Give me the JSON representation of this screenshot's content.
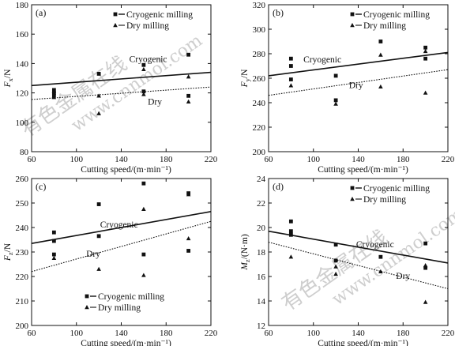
{
  "watermark": {
    "text_cn": "有色金属在线",
    "text_url": "www.cnnmol.com"
  },
  "legend_labels": {
    "cryo": "Cryogenic milling",
    "dry": "Dry milling"
  },
  "annotations": {
    "cryo": "Cryogenic",
    "dry": "Dry"
  },
  "colors": {
    "ink": "#111111",
    "frame": "#111111",
    "watermark": "#c9c9c9"
  },
  "chart_data": [
    {
      "type": "scatter",
      "panel": "(a)",
      "xlabel": "Cutting speed/(m·min⁻¹)",
      "ylabel": "Fₓ/N",
      "xlim": [
        60,
        220
      ],
      "ylim": [
        80,
        180
      ],
      "xticks": [
        60,
        100,
        140,
        180,
        220
      ],
      "yticks": [
        80,
        100,
        120,
        140,
        160,
        180
      ],
      "legend_position": "top-right",
      "annotation_positions": {
        "cryo": [
          164,
          141
        ],
        "dry": [
          170,
          112
        ]
      },
      "series": [
        {
          "name": "Cryogenic milling",
          "marker": "square",
          "x": [
            80,
            80,
            80,
            120,
            160,
            160,
            200,
            200
          ],
          "y": [
            122,
            120,
            118,
            133,
            139,
            121,
            146,
            118
          ],
          "fit": [
            [
              60,
              125
            ],
            [
              220,
              134
            ]
          ]
        },
        {
          "name": "Dry milling",
          "marker": "triangle",
          "x": [
            80,
            80,
            120,
            120,
            160,
            160,
            200,
            200
          ],
          "y": [
            121,
            117,
            118,
            106,
            136,
            119,
            131,
            114
          ],
          "fit": [
            [
              60,
              115.5
            ],
            [
              220,
              124
            ]
          ]
        }
      ]
    },
    {
      "type": "scatter",
      "panel": "(b)",
      "xlabel": "Cutting speed/(m·min⁻¹)",
      "ylabel": "F_y/N",
      "xlim": [
        60,
        220
      ],
      "ylim": [
        200,
        320
      ],
      "xticks": [
        60,
        100,
        140,
        180,
        220
      ],
      "yticks": [
        200,
        220,
        240,
        260,
        280,
        300,
        320
      ],
      "legend_position": "top-right",
      "annotation_positions": {
        "cryo": [
          108,
          273
        ],
        "dry": [
          138,
          252
        ]
      },
      "series": [
        {
          "name": "Cryogenic milling",
          "marker": "square",
          "x": [
            80,
            80,
            80,
            120,
            120,
            160,
            200,
            200
          ],
          "y": [
            276,
            270,
            259,
            262,
            242,
            290,
            285,
            276
          ],
          "fit": [
            [
              60,
              262
            ],
            [
              220,
              281
            ]
          ]
        },
        {
          "name": "Dry milling",
          "marker": "triangle",
          "x": [
            80,
            120,
            160,
            160,
            200,
            200
          ],
          "y": [
            254,
            239,
            279,
            253,
            282,
            248
          ],
          "fit": [
            [
              60,
              246
            ],
            [
              220,
              267
            ]
          ]
        }
      ]
    },
    {
      "type": "scatter",
      "panel": "(c)",
      "xlabel": "Cutting speed/(m·min⁻¹)",
      "ylabel": "F_z/N",
      "xlim": [
        60,
        220
      ],
      "ylim": [
        200,
        260
      ],
      "xticks": [
        60,
        100,
        140,
        180,
        220
      ],
      "yticks": [
        200,
        210,
        220,
        230,
        240,
        250,
        260
      ],
      "legend_position": "bottom-left",
      "annotation_positions": {
        "cryo": [
          138,
          240
        ],
        "dry": [
          115,
          228
        ]
      },
      "series": [
        {
          "name": "Cryogenic milling",
          "marker": "square",
          "x": [
            80,
            80,
            80,
            120,
            120,
            160,
            160,
            200,
            200
          ],
          "y": [
            238,
            234.5,
            229,
            249.5,
            236.5,
            258,
            229,
            254,
            230.5
          ],
          "fit": [
            [
              60,
              233.5
            ],
            [
              220,
              246.5
            ]
          ]
        },
        {
          "name": "Dry milling",
          "marker": "triangle",
          "x": [
            80,
            120,
            160,
            160,
            200,
            200
          ],
          "y": [
            227.5,
            223,
            247.5,
            220.5,
            253.5,
            235.5
          ],
          "fit": [
            [
              60,
              222
            ],
            [
              220,
              242.5
            ]
          ]
        }
      ]
    },
    {
      "type": "scatter",
      "panel": "(d)",
      "xlabel": "Cutting speed/(m·min⁻¹)",
      "ylabel": "M_z/(N·m)",
      "xlim": [
        60,
        220
      ],
      "ylim": [
        12,
        24
      ],
      "xticks": [
        60,
        100,
        140,
        180,
        220
      ],
      "yticks": [
        12,
        14,
        16,
        18,
        20,
        22,
        24
      ],
      "legend_position": "top-right",
      "annotation_positions": {
        "cryo": [
          155,
          18.4
        ],
        "dry": [
          180,
          15.8
        ]
      },
      "series": [
        {
          "name": "Cryogenic milling",
          "marker": "square",
          "x": [
            80,
            80,
            80,
            120,
            120,
            160,
            200,
            200
          ],
          "y": [
            20.5,
            19.7,
            19.4,
            18.6,
            17.3,
            17.6,
            18.7,
            16.7
          ],
          "fit": [
            [
              60,
              19.7
            ],
            [
              220,
              17.1
            ]
          ]
        },
        {
          "name": "Dry milling",
          "marker": "triangle",
          "x": [
            80,
            120,
            120,
            160,
            200,
            200
          ],
          "y": [
            17.6,
            16.8,
            16.2,
            16.4,
            16.9,
            13.9
          ],
          "fit": [
            [
              60,
              18.8
            ],
            [
              220,
              15.0
            ]
          ]
        }
      ]
    }
  ]
}
